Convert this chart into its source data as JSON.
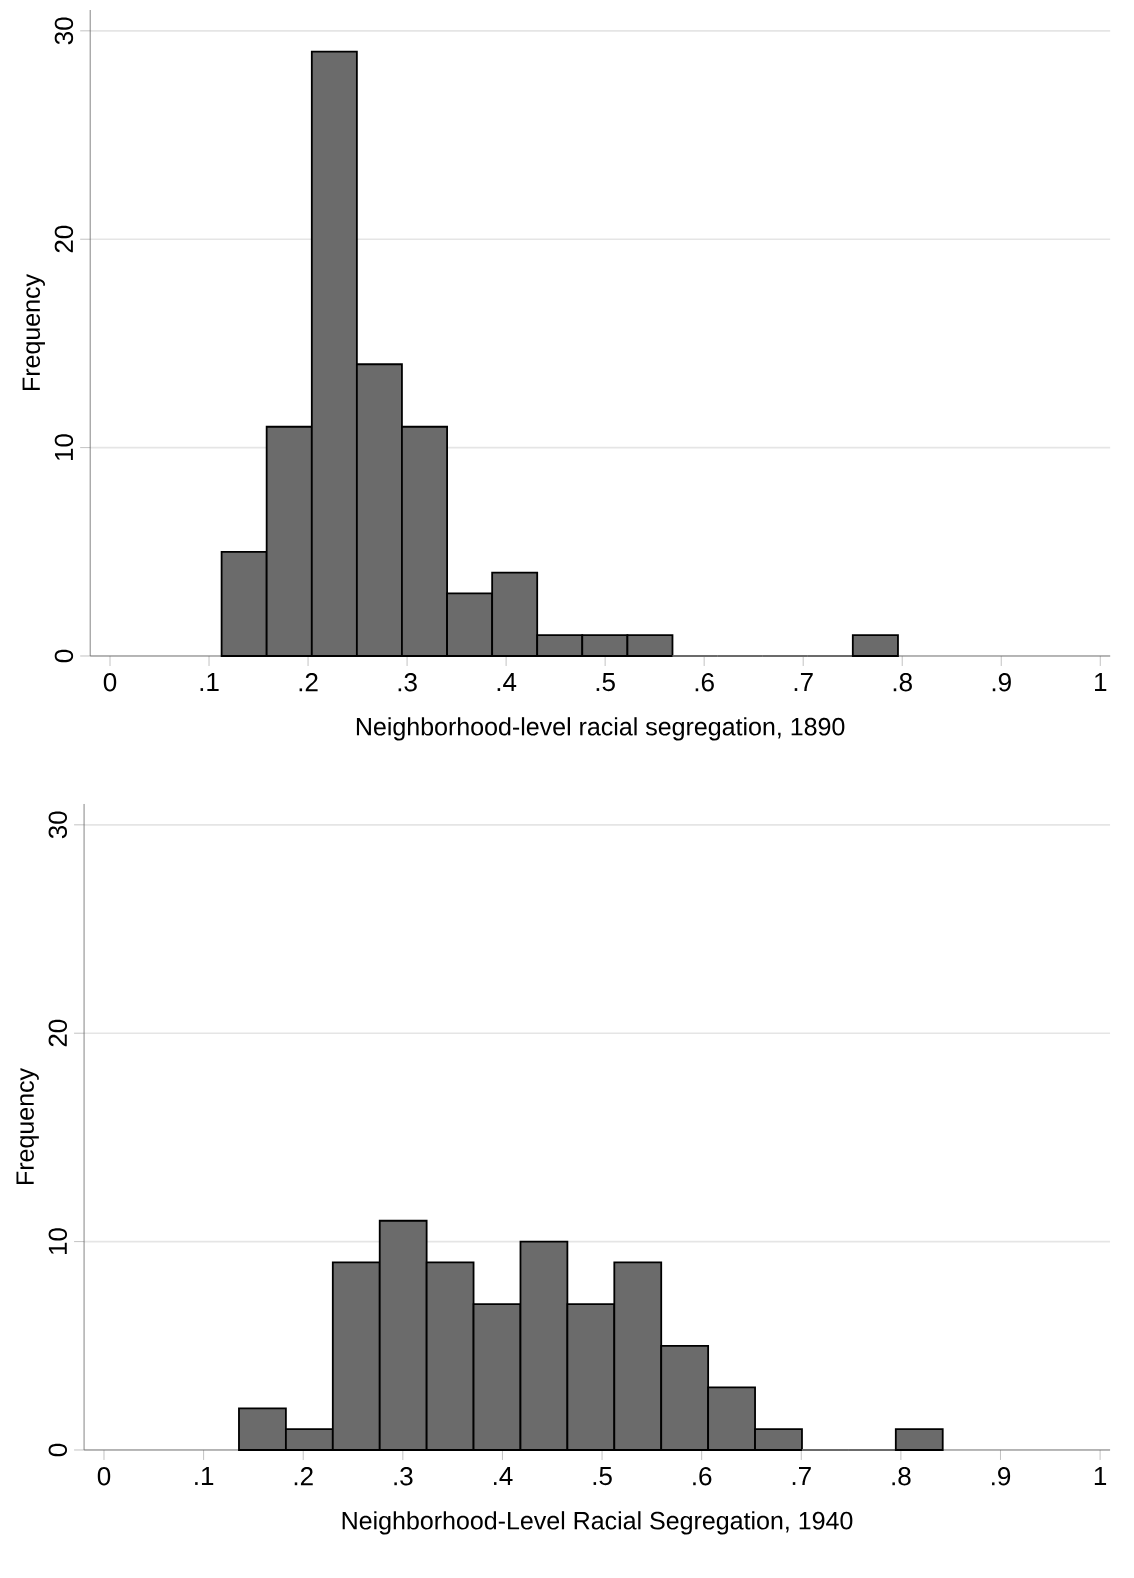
{
  "chart_data": [
    {
      "type": "histogram",
      "xlabel": "Neighborhood-level racial segregation, 1890",
      "ylabel": "Frequency",
      "color": "#6b6b6b",
      "bins": [
        0.1127,
        0.1582,
        0.2038,
        0.2493,
        0.2948,
        0.3404,
        0.3859,
        0.4314,
        0.4769,
        0.5225,
        0.568,
        0.6135,
        0.6591,
        0.7046,
        0.7501,
        0.7957
      ],
      "values": [
        5,
        11,
        29,
        14,
        11,
        3,
        4,
        1,
        1,
        1,
        0,
        0,
        0,
        0,
        1
      ],
      "xlim": [
        -0.02,
        1.01
      ],
      "ylim": [
        0,
        31
      ],
      "xticks": [
        0,
        {
          "value": 0.1,
          "label": ".1"
        },
        {
          "value": 0.2,
          "label": ".2"
        },
        {
          "value": 0.3,
          "label": ".3"
        },
        {
          "value": 0.4,
          "label": ".4"
        },
        {
          "value": 0.5,
          "label": ".5"
        },
        {
          "value": 0.6,
          "label": ".6"
        },
        {
          "value": 0.7,
          "label": ".7"
        },
        {
          "value": 0.8,
          "label": ".8"
        },
        {
          "value": 0.9,
          "label": ".9"
        },
        1
      ],
      "yticks": [
        0,
        10,
        20,
        30
      ],
      "grid": "y"
    },
    {
      "type": "histogram",
      "xlabel": "Neighborhood-Level Racial Segregation, 1940",
      "ylabel": "Frequency",
      "color": "#6b6b6b",
      "bins": [
        0.1355,
        0.1826,
        0.2297,
        0.2768,
        0.3239,
        0.371,
        0.4181,
        0.4652,
        0.5123,
        0.5594,
        0.6065,
        0.6536,
        0.7007,
        0.7478,
        0.7949,
        0.842
      ],
      "values": [
        2,
        1,
        9,
        11,
        9,
        7,
        10,
        7,
        9,
        5,
        3,
        1,
        0,
        0,
        1
      ],
      "xlim": [
        -0.02,
        1.01
      ],
      "ylim": [
        0,
        31
      ],
      "xticks": [
        0,
        {
          "value": 0.1,
          "label": ".1"
        },
        {
          "value": 0.2,
          "label": ".2"
        },
        {
          "value": 0.3,
          "label": ".3"
        },
        {
          "value": 0.4,
          "label": ".4"
        },
        {
          "value": 0.5,
          "label": ".5"
        },
        {
          "value": 0.6,
          "label": ".6"
        },
        {
          "value": 0.7,
          "label": ".7"
        },
        {
          "value": 0.8,
          "label": ".8"
        },
        {
          "value": 0.9,
          "label": ".9"
        },
        1
      ],
      "yticks": [
        0,
        10,
        20,
        30
      ],
      "grid": "y"
    }
  ]
}
